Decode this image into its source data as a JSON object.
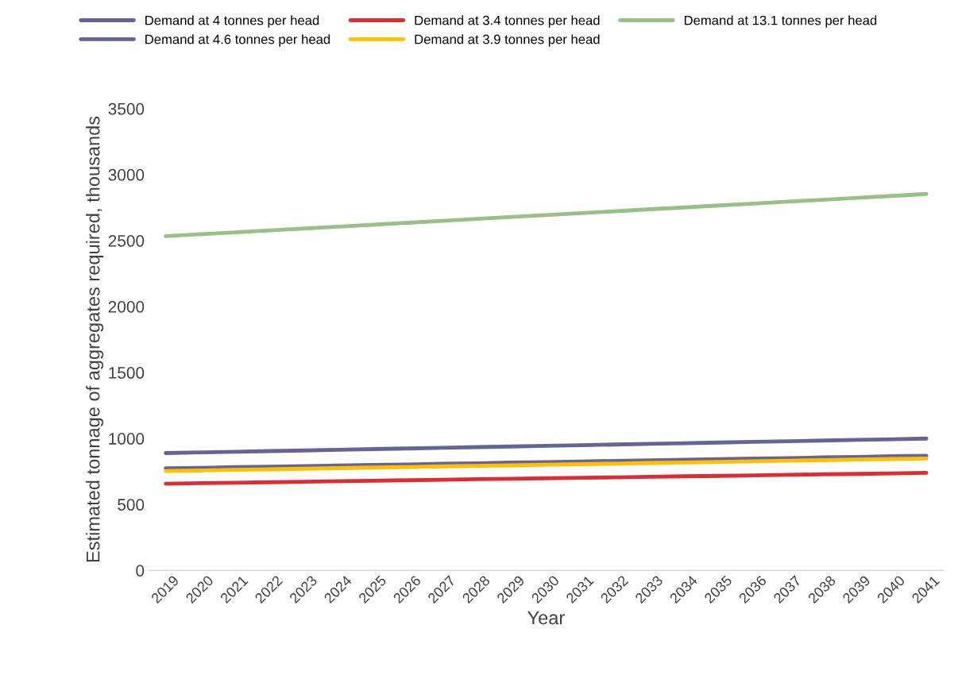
{
  "chart_data": {
    "type": "line",
    "xlabel": "Year",
    "ylabel": "Estimated tonnage of aggregates required, thousands",
    "categories": [
      "2019",
      "2020",
      "2021",
      "2022",
      "2023",
      "2024",
      "2025",
      "2026",
      "2027",
      "2028",
      "2029",
      "2030",
      "2031",
      "2032",
      "2033",
      "2034",
      "2035",
      "2036",
      "2037",
      "2038",
      "2039",
      "2040",
      "2041"
    ],
    "series": [
      {
        "name": "Demand at 4 tonnes per head",
        "color": "#646499",
        "values": [
          773,
          777,
          782,
          786,
          790,
          795,
          799,
          803,
          808,
          812,
          817,
          821,
          825,
          830,
          834,
          838,
          843,
          847,
          851,
          856,
          860,
          865,
          869
        ]
      },
      {
        "name": "Demand at 3.4 tonnes per head",
        "color": "#df2b33",
        "values": [
          657,
          661,
          664,
          668,
          672,
          676,
          679,
          683,
          687,
          691,
          694,
          698,
          702,
          705,
          709,
          713,
          716,
          720,
          724,
          728,
          731,
          735,
          739
        ]
      },
      {
        "name": "Demand at 13.1 tonnes per head",
        "color": "#9cbf8a",
        "values": [
          2533,
          2548,
          2562,
          2577,
          2591,
          2606,
          2620,
          2635,
          2649,
          2664,
          2679,
          2693,
          2708,
          2722,
          2737,
          2751,
          2766,
          2780,
          2795,
          2809,
          2824,
          2838,
          2853
        ]
      },
      {
        "name": "Demand at 4.6 tonnes per head",
        "color": "#646499",
        "values": [
          889,
          894,
          899,
          904,
          909,
          914,
          919,
          924,
          929,
          934,
          939,
          944,
          949,
          954,
          959,
          964,
          969,
          974,
          979,
          984,
          989,
          994,
          999
        ]
      },
      {
        "name": "Demand at 3.9 tonnes per head",
        "color": "#ffc000",
        "values": [
          753,
          757,
          762,
          766,
          770,
          775,
          779,
          783,
          788,
          792,
          796,
          801,
          805,
          809,
          814,
          818,
          822,
          827,
          831,
          835,
          840,
          844,
          848
        ]
      }
    ],
    "ylim": [
      0,
      3500
    ],
    "yticks": [
      0,
      500,
      1000,
      1500,
      2000,
      2500,
      3000,
      3500
    ],
    "grid": false,
    "legend": "top",
    "marker": "none",
    "line_style": "solid"
  }
}
